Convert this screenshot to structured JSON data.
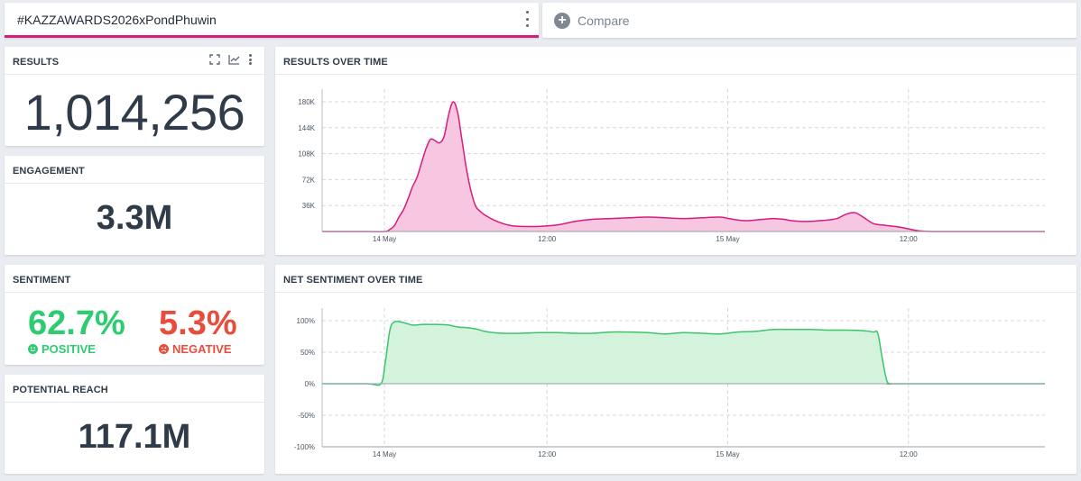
{
  "search": {
    "query": "#KAZZAWARDS2026xPondPhuwin",
    "compare_label": "Compare"
  },
  "results": {
    "title": "RESULTS",
    "value": "1,014,256"
  },
  "engagement": {
    "title": "ENGAGEMENT",
    "value": "3.3M"
  },
  "sentiment": {
    "title": "SENTIMENT",
    "positive_value": "62.7%",
    "positive_label": "POSITIVE",
    "negative_value": "5.3%",
    "negative_label": "NEGATIVE"
  },
  "reach": {
    "title": "POTENTIAL REACH",
    "value": "117.1M"
  },
  "colors": {
    "accent": "#d81b7f",
    "positive": "#2ecc71",
    "negative": "#e74c3c",
    "results_fill": "#f7c6e0",
    "sentiment_line": "#3cc46a",
    "sentiment_fill": "#d3f3dd"
  },
  "chart_data": [
    {
      "type": "area",
      "title": "RESULTS OVER TIME",
      "x_tick_labels": [
        "14 May",
        "12:00",
        "15 May",
        "12:00"
      ],
      "y_tick_labels": [
        "36K",
        "72K",
        "108K",
        "144K",
        "180K"
      ],
      "ylim": [
        0,
        180000
      ],
      "grid": true,
      "x": [
        0,
        5,
        7,
        7.5,
        8,
        8.5,
        9,
        9.5,
        10,
        10.5,
        11,
        11.5,
        12,
        12.5,
        13,
        13.5,
        14,
        14.5,
        15,
        15.5,
        16,
        16.5,
        17,
        17.5,
        18,
        19,
        20,
        21,
        22,
        24,
        26,
        28,
        30,
        32,
        34,
        36,
        38,
        40,
        42,
        44,
        45,
        46,
        47,
        48,
        49,
        50,
        51,
        52,
        53,
        54,
        55,
        56,
        57,
        58,
        59,
        60,
        61,
        62,
        64,
        66,
        68,
        70,
        72,
        74,
        76,
        78,
        80
      ],
      "values": [
        0,
        0,
        0,
        3000,
        8000,
        20000,
        30000,
        45000,
        62000,
        75000,
        95000,
        115000,
        128000,
        126000,
        123000,
        132000,
        162000,
        180000,
        165000,
        125000,
        85000,
        55000,
        35000,
        28000,
        23000,
        16000,
        11000,
        8000,
        7000,
        7000,
        9000,
        14000,
        17000,
        18000,
        19000,
        20000,
        19000,
        18000,
        19000,
        20000,
        18000,
        16000,
        15000,
        16000,
        17000,
        18000,
        17000,
        15000,
        14000,
        14000,
        15000,
        16000,
        18000,
        24000,
        26000,
        19000,
        11000,
        9000,
        6000,
        1000,
        0,
        0,
        0,
        0,
        0,
        0,
        0
      ]
    },
    {
      "type": "area",
      "title": "NET SENTIMENT OVER TIME",
      "x_tick_labels": [
        "14 May",
        "12:00",
        "15 May",
        "12:00"
      ],
      "y_tick_labels": [
        "100%",
        "50%",
        "0%",
        "-50%",
        "-100%"
      ],
      "ylim": [
        -100,
        100
      ],
      "grid": true,
      "x": [
        0,
        5,
        6.5,
        7,
        7.5,
        8,
        9,
        10,
        11,
        12,
        13,
        14,
        15,
        16,
        17,
        18,
        19,
        20,
        22,
        24,
        26,
        28,
        30,
        32,
        34,
        36,
        38,
        40,
        42,
        44,
        46,
        48,
        50,
        52,
        54,
        56,
        58,
        60,
        61,
        61.5,
        62,
        62.5,
        63,
        64,
        80
      ],
      "values": [
        0,
        0,
        0,
        35,
        85,
        98,
        97,
        93,
        94,
        94,
        94,
        93,
        90,
        89,
        87,
        83,
        81,
        80,
        80,
        81,
        81,
        80,
        80,
        82,
        82,
        81,
        79,
        81,
        80,
        79,
        82,
        83,
        86,
        86,
        86,
        85,
        85,
        84,
        82,
        80,
        40,
        5,
        0,
        0,
        0
      ]
    }
  ]
}
